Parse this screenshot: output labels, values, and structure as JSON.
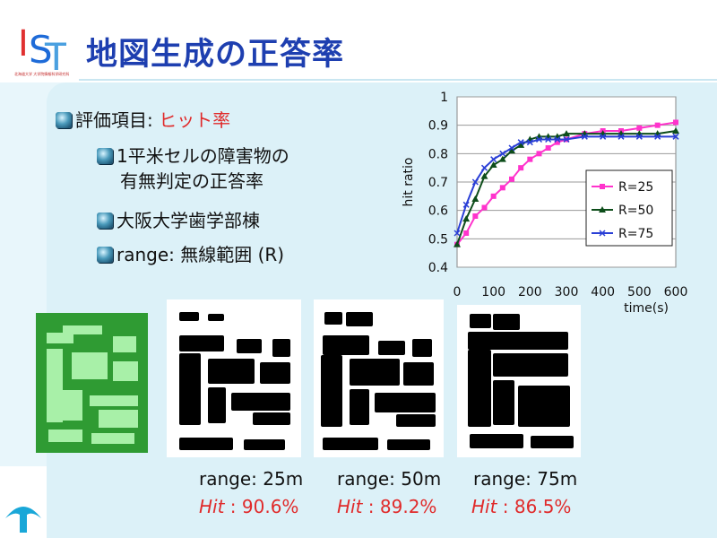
{
  "slide": {
    "title": "地図生成の正答率",
    "logo_small_text": "北海道大学 大学院情報科学研究科"
  },
  "bullets": {
    "main_label": "評価項目: ",
    "main_value": "ヒット率",
    "sub1_line1": "1平米セルの障害物の",
    "sub1_line2": "有無判定の正答率",
    "sub2": "大阪大学歯学部棟",
    "sub3": "range:  無線範囲 (R)"
  },
  "chart_data": {
    "type": "line",
    "xlabel": "time(s)",
    "ylabel": "hit ratio",
    "xlim": [
      0,
      600
    ],
    "ylim": [
      0.4,
      1
    ],
    "x_ticks": [
      "0",
      "100",
      "200",
      "300",
      "400",
      "500",
      "600"
    ],
    "y_ticks": [
      "0.4",
      "0.5",
      "0.6",
      "0.7",
      "0.8",
      "0.9",
      "1"
    ],
    "grid": true,
    "legend_placement": "right-middle",
    "colors": {
      "R=25": "#ff33cc",
      "R=50": "#0d4d1a",
      "R=75": "#2a3fd6"
    },
    "series": [
      {
        "name": "R=25",
        "marker": "square",
        "x": [
          0,
          25,
          50,
          75,
          100,
          125,
          150,
          175,
          200,
          225,
          250,
          275,
          300,
          350,
          400,
          450,
          500,
          550,
          600
        ],
        "y": [
          0.48,
          0.52,
          0.58,
          0.61,
          0.65,
          0.68,
          0.71,
          0.75,
          0.78,
          0.8,
          0.82,
          0.84,
          0.85,
          0.87,
          0.88,
          0.88,
          0.89,
          0.9,
          0.91
        ]
      },
      {
        "name": "R=50",
        "marker": "triangle",
        "x": [
          0,
          25,
          50,
          75,
          100,
          125,
          150,
          175,
          200,
          225,
          250,
          275,
          300,
          350,
          400,
          450,
          500,
          550,
          600
        ],
        "y": [
          0.48,
          0.57,
          0.64,
          0.72,
          0.76,
          0.78,
          0.81,
          0.83,
          0.85,
          0.86,
          0.86,
          0.86,
          0.87,
          0.87,
          0.87,
          0.87,
          0.87,
          0.87,
          0.88
        ]
      },
      {
        "name": "R=75",
        "marker": "x",
        "x": [
          0,
          25,
          50,
          75,
          100,
          125,
          150,
          175,
          200,
          225,
          250,
          275,
          300,
          350,
          400,
          450,
          500,
          550,
          600
        ],
        "y": [
          0.52,
          0.62,
          0.7,
          0.75,
          0.78,
          0.8,
          0.82,
          0.84,
          0.84,
          0.85,
          0.85,
          0.85,
          0.85,
          0.86,
          0.86,
          0.86,
          0.86,
          0.86,
          0.86
        ]
      }
    ]
  },
  "maps": {
    "captions": [
      "range: 25m",
      "range: 50m",
      "range: 75m"
    ],
    "hits": [
      {
        "label": "Hit",
        "sep": " : ",
        "value": "90.6%"
      },
      {
        "label": "Hit",
        "sep": " : ",
        "value": "89.2%"
      },
      {
        "label": "Hit",
        "sep": " : ",
        "value": "86.5%"
      }
    ]
  }
}
